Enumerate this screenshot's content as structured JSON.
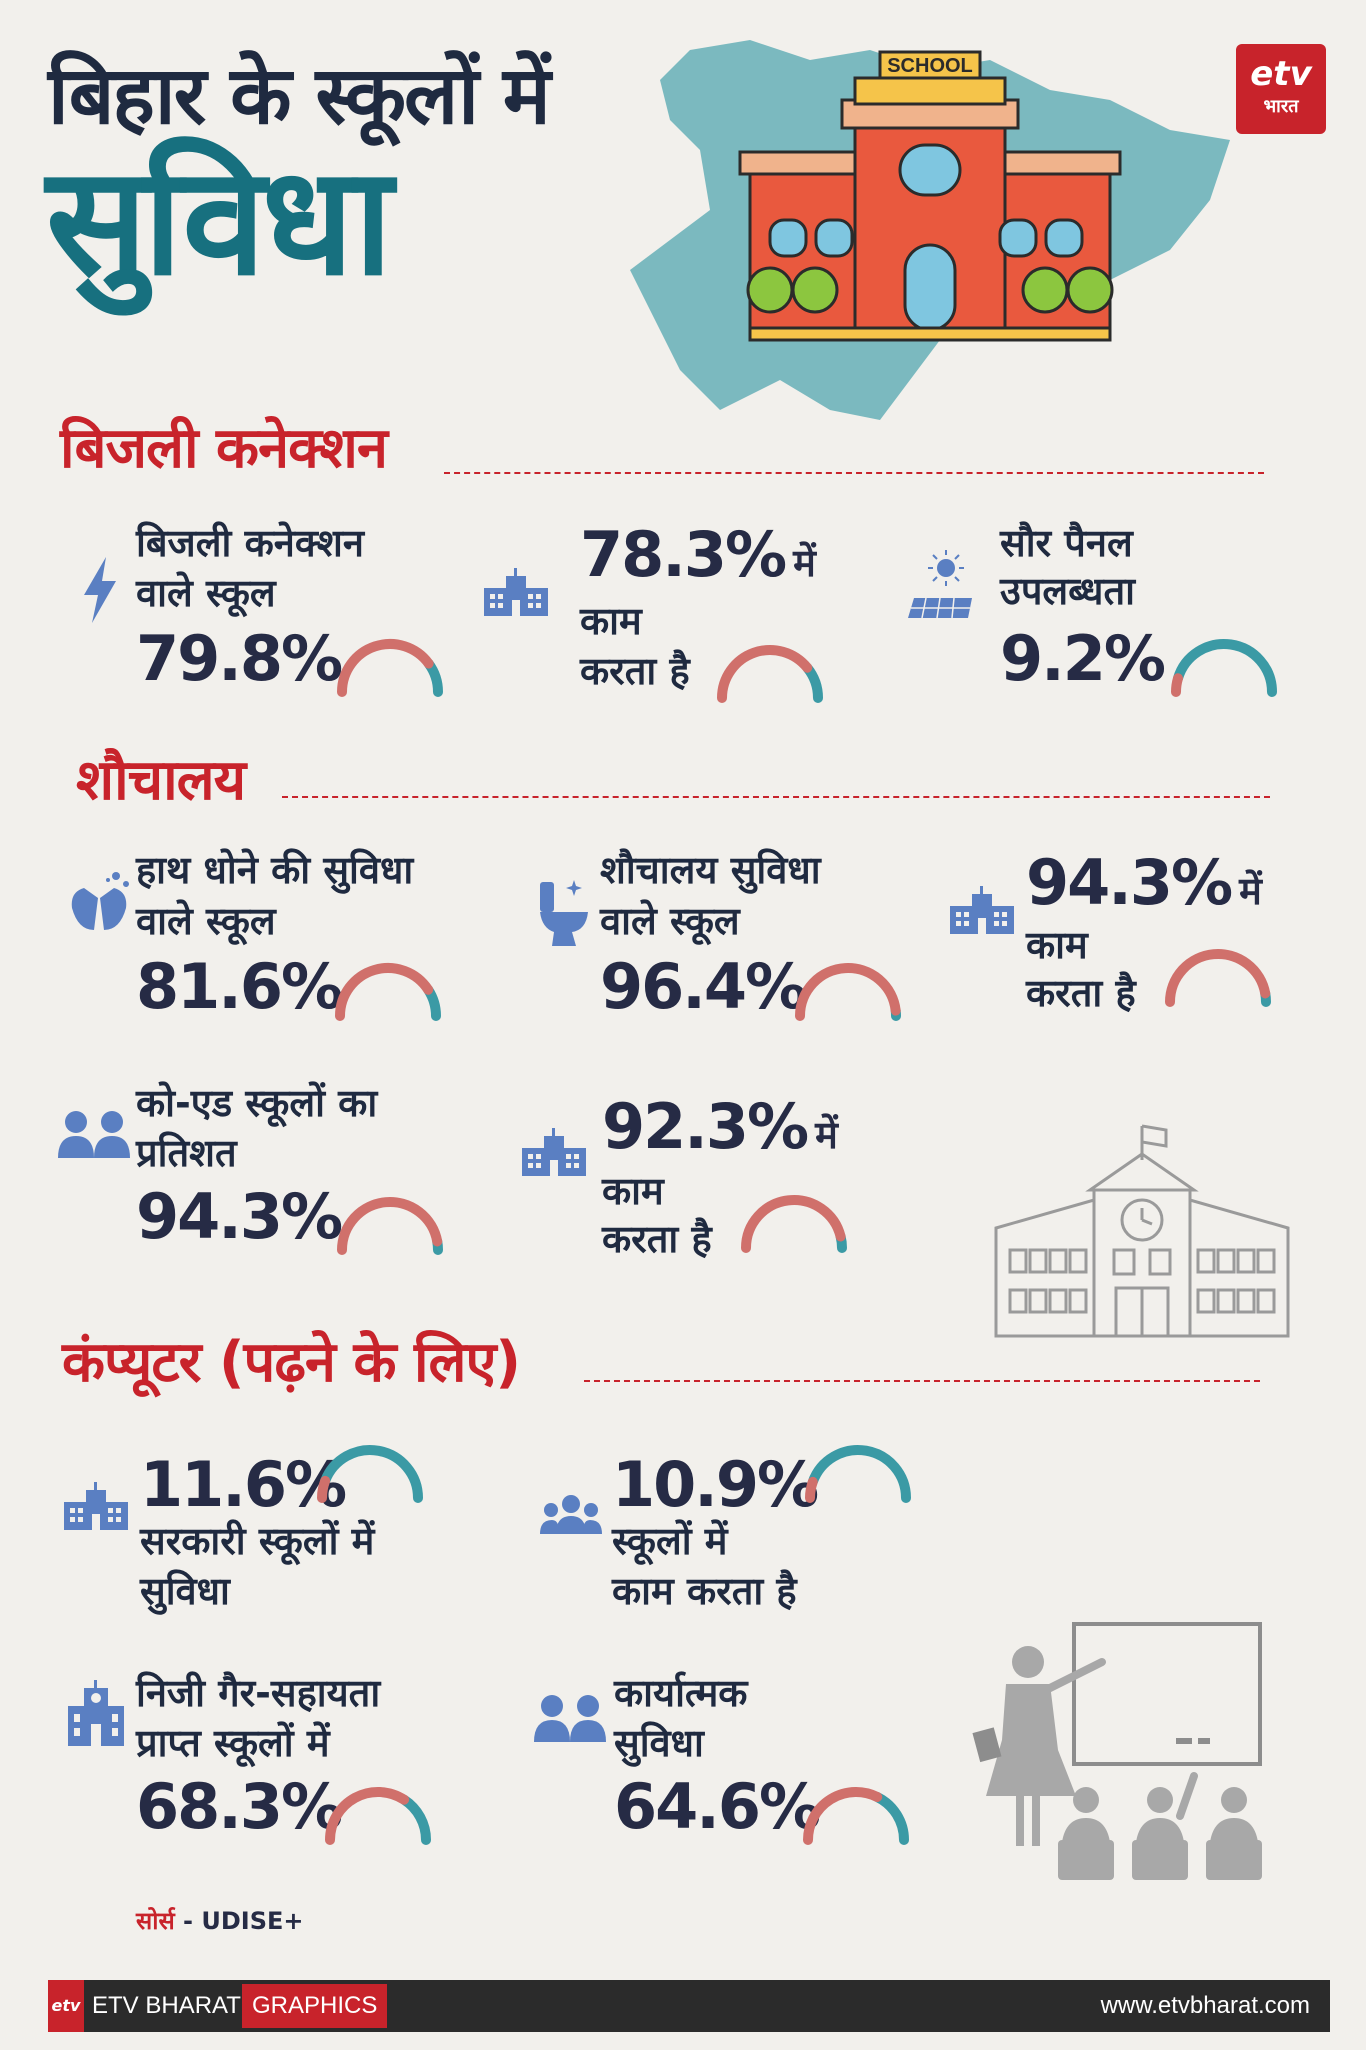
{
  "header": {
    "title_line1": "बिहार के स्कूलों में",
    "title_line2": "सुविधा",
    "school_sign": "SCHOOL",
    "logo_top": "etv",
    "logo_bottom": "भारत"
  },
  "sections": {
    "electricity": "बिजली कनेक्शन",
    "toilet": "शौचालय",
    "computer": "कंप्यूटर (पढ़ने के लिए)"
  },
  "electricity": {
    "c1": {
      "label1": "बिजली कनेक्शन",
      "label2": "वाले स्कूल",
      "value": "79.8%",
      "fraction": 0.798
    },
    "c2": {
      "value": "78.3%",
      "suffix": "में",
      "label1": "काम",
      "label2": "करता है",
      "fraction": 0.783
    },
    "c3": {
      "label1": "सौर पैनल",
      "label2": "उपलब्धता",
      "value": "9.2%",
      "fraction": 0.092
    }
  },
  "toilet": {
    "c1": {
      "label1": "हाथ धोने की सुविधा",
      "label2": "वाले स्कूल",
      "value": "81.6%",
      "fraction": 0.816
    },
    "c2": {
      "label1": "शौचालय सुविधा",
      "label2": "वाले स्कूल",
      "value": "96.4%",
      "fraction": 0.964
    },
    "c3": {
      "value": "94.3%",
      "suffix": "में",
      "label1": "काम",
      "label2": "करता है",
      "fraction": 0.943
    },
    "c4": {
      "label1": "को-एड स्कूलों का",
      "label2": "प्रतिशत",
      "value": "94.3%",
      "fraction": 0.943
    },
    "c5": {
      "value": "92.3%",
      "suffix": "में",
      "label1": "काम",
      "label2": "करता है",
      "fraction": 0.923
    }
  },
  "computer": {
    "c1": {
      "value": "11.6%",
      "label1": "सरकारी स्कूलों में",
      "label2": "सुविधा",
      "fraction": 0.116
    },
    "c2": {
      "value": "10.9%",
      "label1": "स्कूलों में",
      "label2": "काम करता है",
      "fraction": 0.109
    },
    "c3": {
      "label1": "निजी गैर-सहायता",
      "label2": "प्राप्त स्कूलों में",
      "value": "68.3%",
      "fraction": 0.683
    },
    "c4": {
      "label1": "कार्यात्मक",
      "label2": "सुविधा",
      "value": "64.6%",
      "fraction": 0.646
    }
  },
  "source": {
    "label": "सोर्स",
    "text": "- UDISE+"
  },
  "footer": {
    "logo": "etv",
    "brand": "ETV BHARAT",
    "graphics": "GRAPHICS",
    "url": "www.etvbharat.com"
  },
  "colors": {
    "gauge_fill": "#d0706b",
    "gauge_rest": "#3b9aa5",
    "accent": "#c8232b",
    "teal": "#17707f"
  }
}
